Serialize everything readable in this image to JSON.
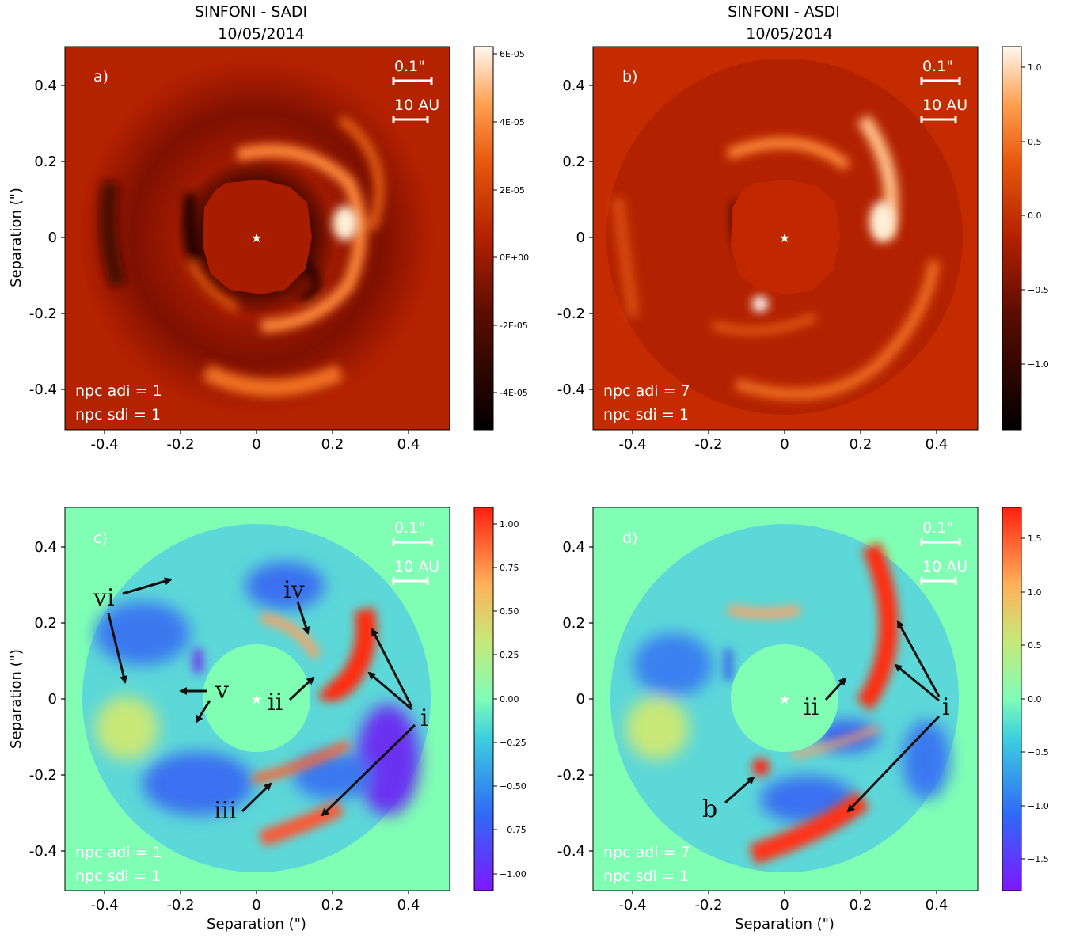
{
  "figure": {
    "top_row_title_left": [
      "SINFONI - SADI",
      "10/05/2014"
    ],
    "top_row_title_right": [
      "SINFONI - ASDI",
      "10/05/2014"
    ],
    "y_axis_label": "Separation (\")",
    "x_axis_label": "Separation (\")",
    "x_ticks": [
      "-0.4",
      "-0.2",
      "0",
      "0.2",
      "0.4"
    ],
    "y_ticks": [
      "0.4",
      "0.2",
      "0",
      "-0.2",
      "-0.4"
    ],
    "scale_bar_1": "0.1\"",
    "scale_bar_2": "10 AU",
    "star_marker": "★"
  },
  "panels": [
    {
      "label": "a)",
      "npc_adi": "npc adi = 1",
      "npc_sdi": "npc sdi = 1",
      "colormap": "gist_heat",
      "colorbar_ticks": [
        "6E-05",
        "4E-05",
        "2E-05",
        "0E+00",
        "-2E-05",
        "-4E-05"
      ],
      "annotations": []
    },
    {
      "label": "b)",
      "npc_adi": "npc adi = 7",
      "npc_sdi": "npc sdi = 1",
      "colormap": "gist_heat",
      "colorbar_ticks": [
        "1.0",
        "0.5",
        "0.0",
        "−0.5",
        "−1.0"
      ],
      "annotations": []
    },
    {
      "label": "c)",
      "npc_adi": "npc adi = 1",
      "npc_sdi": "npc sdi = 1",
      "colormap": "rainbow",
      "colorbar_ticks": [
        "1.00",
        "0.75",
        "0.50",
        "0.25",
        "0.00",
        "−0.25",
        "−0.50",
        "−0.75",
        "−1.00"
      ],
      "annotations": [
        "vi",
        "iv",
        "v",
        "ii",
        "i",
        "iii"
      ]
    },
    {
      "label": "d)",
      "npc_adi": "npc adi = 7",
      "npc_sdi": "npc sdi = 1",
      "colormap": "rainbow",
      "colorbar_ticks": [
        "1.5",
        "1.0",
        "0.5",
        "0.0",
        "−0.5",
        "−1.0",
        "−1.5"
      ],
      "annotations": [
        "ii",
        "i",
        "b"
      ]
    }
  ]
}
